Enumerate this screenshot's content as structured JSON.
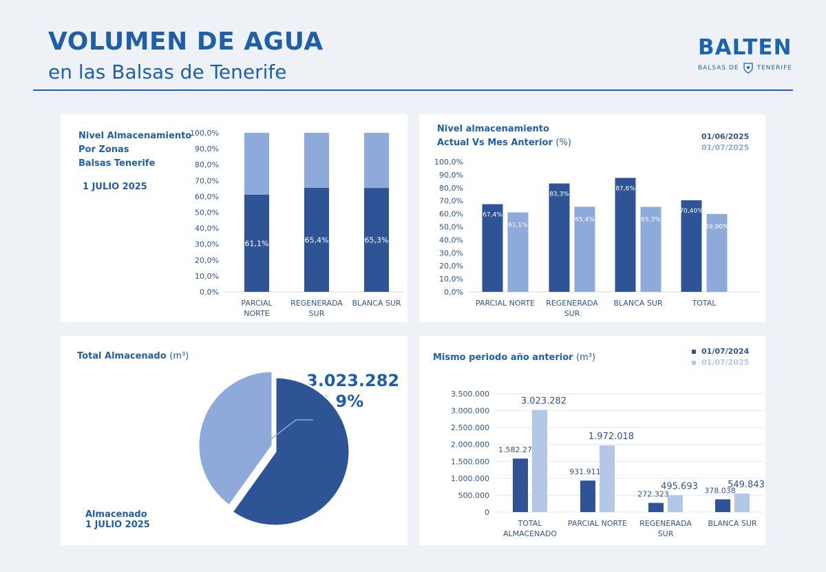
{
  "header": {
    "title": "VOLUMEN DE AGUA",
    "subtitle": "en las Balsas de Tenerife",
    "logo": "BALTEN",
    "logo_sub_left": "BALSAS DE",
    "logo_sub_right": "TENERIFE",
    "logo_emblem": "shield-icon"
  },
  "colors": {
    "dark": "#2e5496",
    "light": "#8eaadb",
    "lighter": "#b4c7e7",
    "text": "#1f5fa8",
    "axis": "#2e5496"
  },
  "panel1": {
    "title_lines": [
      "Nivel Almacenamiento",
      "Por Zonas",
      "Balsas Tenerife"
    ],
    "date": "1 JULIO 2025"
  },
  "panel2": {
    "title_line1": "Nivel almacenamiento",
    "title_line2": "Actual Vs Mes Anterior",
    "title_unit": "(%)",
    "legend": [
      "01/06/2025",
      "01/07/2025"
    ]
  },
  "panel3": {
    "title": "Total Almacenado",
    "unit": "(m³)",
    "value": "3.023.282",
    "percent": "59,9%",
    "label_line1": "Almacenado",
    "label_line2": "1 JULIO 2025"
  },
  "panel4": {
    "title": "Mismo periodo año anterior",
    "unit": "(m³)",
    "legend": [
      "01/07/2024",
      "01/07/2025"
    ]
  },
  "chart_data": [
    {
      "type": "bar",
      "stacked": true,
      "categories": [
        [
          "PARCIAL",
          "NORTE"
        ],
        [
          "REGENERADA",
          "SUR"
        ],
        [
          "BLANCA SUR"
        ]
      ],
      "values": [
        61.1,
        65.4,
        65.3
      ],
      "value_labels": [
        "61,1%",
        "65,4%",
        "65,3%"
      ],
      "ylim": [
        0,
        100
      ],
      "yticks": [
        "0.0%",
        "10,0%",
        "20,0%",
        "30,0%",
        "40,0%",
        "50,0%",
        "60,0%",
        "70,0%",
        "80,0%",
        "90,0%",
        "100,0%"
      ]
    },
    {
      "type": "bar",
      "categories": [
        [
          "PARCIAL NORTE"
        ],
        [
          "REGENERADA",
          "SUR"
        ],
        [
          "BLANCA SUR"
        ],
        [
          "TOTAL"
        ]
      ],
      "series": [
        {
          "name": "01/06/2025",
          "values": [
            67.4,
            83.3,
            87.6,
            70.4
          ],
          "labels": [
            "67,4%",
            "83,3%",
            "87,6%",
            "70,40%"
          ]
        },
        {
          "name": "01/07/2025",
          "values": [
            61.1,
            65.4,
            65.3,
            59.9
          ],
          "labels": [
            "61,1%",
            "65,4%",
            "65,3%",
            "59,90%"
          ]
        }
      ],
      "ylim": [
        0,
        100
      ],
      "yticks": [
        "0,0%",
        "10,0%",
        "20,0%",
        "30,0%",
        "40,0%",
        "50,0%",
        "60,0%",
        "70,0%",
        "80,0%",
        "90,0%",
        "100,0%"
      ]
    },
    {
      "type": "pie",
      "slices": [
        {
          "label": "Almacenado",
          "value": 59.9
        },
        {
          "label": "",
          "value": 40.1
        }
      ]
    },
    {
      "type": "bar",
      "categories": [
        [
          "TOTAL",
          "ALMACENADO"
        ],
        [
          "PARCIAL NORTE"
        ],
        [
          "REGENERADA",
          "SUR"
        ],
        [
          "BLANCA SUR"
        ]
      ],
      "series": [
        {
          "name": "01/07/2024",
          "values": [
            1582272,
            931911,
            272323,
            378038
          ],
          "labels": [
            "1.582.272",
            "931.911",
            "272.323",
            "378.038"
          ]
        },
        {
          "name": "01/07/2025",
          "values": [
            3023282,
            1972018,
            495693,
            549843
          ],
          "labels": [
            "3.023.282",
            "1.972.018",
            "495.693",
            "549.843"
          ]
        }
      ],
      "ylim": [
        0,
        3500000
      ],
      "yticks": [
        "0",
        "500.000",
        "1.000.000",
        "1.500.000",
        "2.000.000",
        "2.500.000",
        "3.000.000",
        "3.500.000"
      ]
    }
  ]
}
